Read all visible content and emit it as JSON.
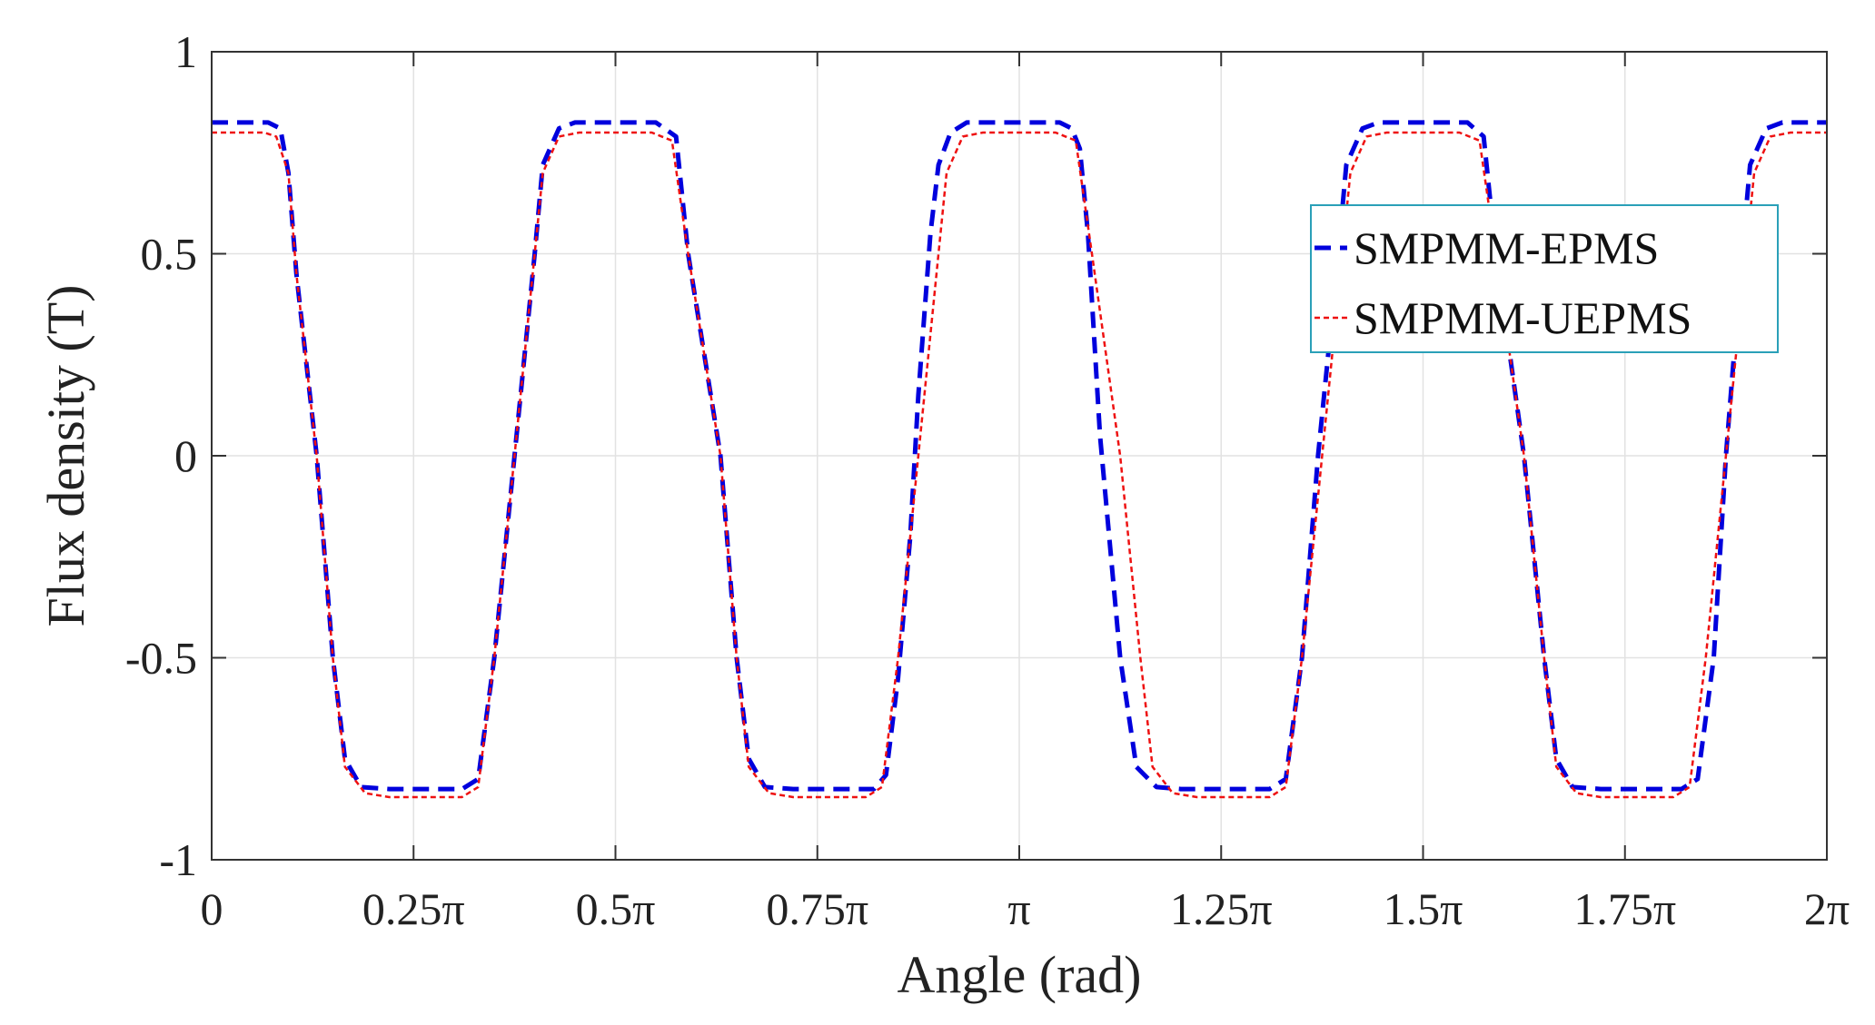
{
  "chart_data": {
    "type": "line",
    "title": "",
    "xlabel": "Angle (rad)",
    "ylabel": "Flux density (T)",
    "xlim": [
      0,
      2
    ],
    "ylim": [
      -1,
      1
    ],
    "x_unit": "multiples of pi",
    "x_ticks": [
      {
        "value": 0,
        "label": "0"
      },
      {
        "value": 0.25,
        "label": "0.25π"
      },
      {
        "value": 0.5,
        "label": "0.5π"
      },
      {
        "value": 0.75,
        "label": "0.75π"
      },
      {
        "value": 1,
        "label": "π"
      },
      {
        "value": 1.25,
        "label": "1.25π"
      },
      {
        "value": 1.5,
        "label": "1.5π"
      },
      {
        "value": 1.75,
        "label": "1.75π"
      },
      {
        "value": 2,
        "label": "2π"
      }
    ],
    "y_ticks": [
      {
        "value": 1,
        "label": "1"
      },
      {
        "value": 0.5,
        "label": "0.5"
      },
      {
        "value": 0,
        "label": "0"
      },
      {
        "value": -0.5,
        "label": "-0.5"
      },
      {
        "value": -1,
        "label": "-1"
      }
    ],
    "grid": true,
    "legend_position": "upper-right",
    "series": [
      {
        "name": "SMPMM-EPMS",
        "color": "#0000dd",
        "style": "dashed",
        "points": [
          [
            0,
            0.825
          ],
          [
            0.07,
            0.825
          ],
          [
            0.085,
            0.81
          ],
          [
            0.095,
            0.7
          ],
          [
            0.105,
            0.45
          ],
          [
            0.13,
            0.0
          ],
          [
            0.15,
            -0.5
          ],
          [
            0.165,
            -0.75
          ],
          [
            0.185,
            -0.82
          ],
          [
            0.22,
            -0.825
          ],
          [
            0.31,
            -0.825
          ],
          [
            0.33,
            -0.8
          ],
          [
            0.35,
            -0.5
          ],
          [
            0.375,
            0.0
          ],
          [
            0.4,
            0.5
          ],
          [
            0.41,
            0.72
          ],
          [
            0.43,
            0.81
          ],
          [
            0.45,
            0.825
          ],
          [
            0.55,
            0.825
          ],
          [
            0.575,
            0.79
          ],
          [
            0.59,
            0.5
          ],
          [
            0.63,
            0.0
          ],
          [
            0.65,
            -0.5
          ],
          [
            0.665,
            -0.75
          ],
          [
            0.685,
            -0.82
          ],
          [
            0.72,
            -0.825
          ],
          [
            0.82,
            -0.825
          ],
          [
            0.835,
            -0.79
          ],
          [
            0.85,
            -0.55
          ],
          [
            0.865,
            -0.2
          ],
          [
            0.875,
            0.15
          ],
          [
            0.89,
            0.55
          ],
          [
            0.9,
            0.72
          ],
          [
            0.915,
            0.8
          ],
          [
            0.935,
            0.825
          ],
          [
            1.05,
            0.825
          ],
          [
            1.065,
            0.81
          ],
          [
            1.075,
            0.76
          ],
          [
            1.085,
            0.55
          ],
          [
            1.1,
            0.05
          ],
          [
            1.125,
            -0.5
          ],
          [
            1.145,
            -0.77
          ],
          [
            1.17,
            -0.82
          ],
          [
            1.2,
            -0.825
          ],
          [
            1.31,
            -0.825
          ],
          [
            1.33,
            -0.8
          ],
          [
            1.35,
            -0.5
          ],
          [
            1.37,
            0.0
          ],
          [
            1.395,
            0.5
          ],
          [
            1.405,
            0.72
          ],
          [
            1.425,
            0.81
          ],
          [
            1.445,
            0.825
          ],
          [
            1.555,
            0.825
          ],
          [
            1.575,
            0.79
          ],
          [
            1.59,
            0.5
          ],
          [
            1.625,
            0.0
          ],
          [
            1.65,
            -0.5
          ],
          [
            1.665,
            -0.75
          ],
          [
            1.685,
            -0.82
          ],
          [
            1.72,
            -0.825
          ],
          [
            1.82,
            -0.825
          ],
          [
            1.84,
            -0.8
          ],
          [
            1.86,
            -0.5
          ],
          [
            1.875,
            0.0
          ],
          [
            1.895,
            0.5
          ],
          [
            1.905,
            0.72
          ],
          [
            1.925,
            0.81
          ],
          [
            1.945,
            0.825
          ],
          [
            2.0,
            0.825
          ]
        ]
      },
      {
        "name": "SMPMM-UEPMS",
        "color": "#ee1111",
        "style": "dotted",
        "points": [
          [
            0,
            0.8
          ],
          [
            0.065,
            0.8
          ],
          [
            0.08,
            0.79
          ],
          [
            0.095,
            0.7
          ],
          [
            0.105,
            0.45
          ],
          [
            0.13,
            0.0
          ],
          [
            0.15,
            -0.5
          ],
          [
            0.165,
            -0.77
          ],
          [
            0.19,
            -0.835
          ],
          [
            0.22,
            -0.845
          ],
          [
            0.31,
            -0.845
          ],
          [
            0.33,
            -0.82
          ],
          [
            0.35,
            -0.5
          ],
          [
            0.375,
            0.0
          ],
          [
            0.4,
            0.5
          ],
          [
            0.41,
            0.7
          ],
          [
            0.43,
            0.79
          ],
          [
            0.455,
            0.8
          ],
          [
            0.545,
            0.8
          ],
          [
            0.57,
            0.78
          ],
          [
            0.59,
            0.5
          ],
          [
            0.63,
            0.0
          ],
          [
            0.65,
            -0.5
          ],
          [
            0.665,
            -0.77
          ],
          [
            0.69,
            -0.835
          ],
          [
            0.72,
            -0.845
          ],
          [
            0.81,
            -0.845
          ],
          [
            0.83,
            -0.82
          ],
          [
            0.85,
            -0.5
          ],
          [
            0.875,
            0.0
          ],
          [
            0.9,
            0.5
          ],
          [
            0.91,
            0.7
          ],
          [
            0.93,
            0.79
          ],
          [
            0.955,
            0.8
          ],
          [
            1.045,
            0.8
          ],
          [
            1.07,
            0.78
          ],
          [
            1.09,
            0.5
          ],
          [
            1.125,
            0.0
          ],
          [
            1.15,
            -0.5
          ],
          [
            1.165,
            -0.77
          ],
          [
            1.19,
            -0.835
          ],
          [
            1.22,
            -0.845
          ],
          [
            1.31,
            -0.845
          ],
          [
            1.33,
            -0.82
          ],
          [
            1.35,
            -0.5
          ],
          [
            1.375,
            0.0
          ],
          [
            1.4,
            0.5
          ],
          [
            1.41,
            0.7
          ],
          [
            1.43,
            0.79
          ],
          [
            1.455,
            0.8
          ],
          [
            1.545,
            0.8
          ],
          [
            1.57,
            0.78
          ],
          [
            1.59,
            0.5
          ],
          [
            1.625,
            0.0
          ],
          [
            1.65,
            -0.5
          ],
          [
            1.665,
            -0.77
          ],
          [
            1.69,
            -0.835
          ],
          [
            1.72,
            -0.845
          ],
          [
            1.81,
            -0.845
          ],
          [
            1.83,
            -0.82
          ],
          [
            1.85,
            -0.5
          ],
          [
            1.875,
            0.0
          ],
          [
            1.9,
            0.5
          ],
          [
            1.91,
            0.7
          ],
          [
            1.93,
            0.79
          ],
          [
            1.955,
            0.8
          ],
          [
            2.0,
            0.8
          ]
        ]
      }
    ]
  }
}
